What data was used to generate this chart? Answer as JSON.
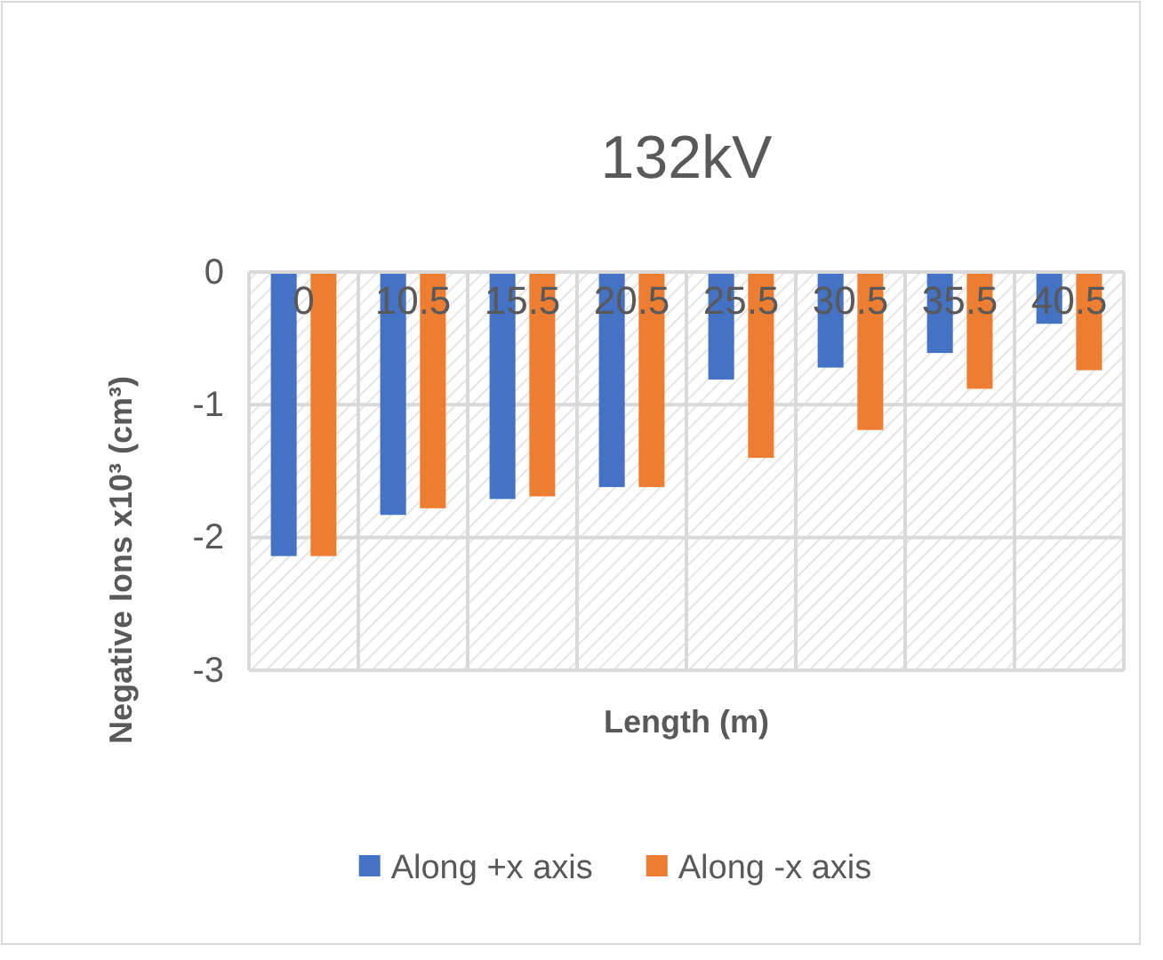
{
  "chart_data": {
    "type": "bar",
    "title": "132kV",
    "xlabel": "Length (m)",
    "ylabel": "Negative Ions  x10³ (cm³)",
    "categories": [
      "0",
      "10.5",
      "15.5",
      "20.5",
      "25.5",
      "30.5",
      "35.5",
      "40.5"
    ],
    "series": [
      {
        "name": "Along +x axis",
        "color": "#4472c4",
        "values": [
          -2.14,
          -1.83,
          -1.71,
          -1.62,
          -0.81,
          -0.72,
          -0.61,
          -0.39
        ]
      },
      {
        "name": "Along -x axis",
        "color": "#ed7d31",
        "values": [
          -2.14,
          -1.78,
          -1.69,
          -1.62,
          -1.4,
          -1.19,
          -0.88,
          -0.74
        ]
      }
    ],
    "ylim": [
      -3,
      0
    ],
    "yticks": [
      0,
      -1,
      -2,
      -3
    ],
    "grid": true,
    "legend": "bottom"
  }
}
